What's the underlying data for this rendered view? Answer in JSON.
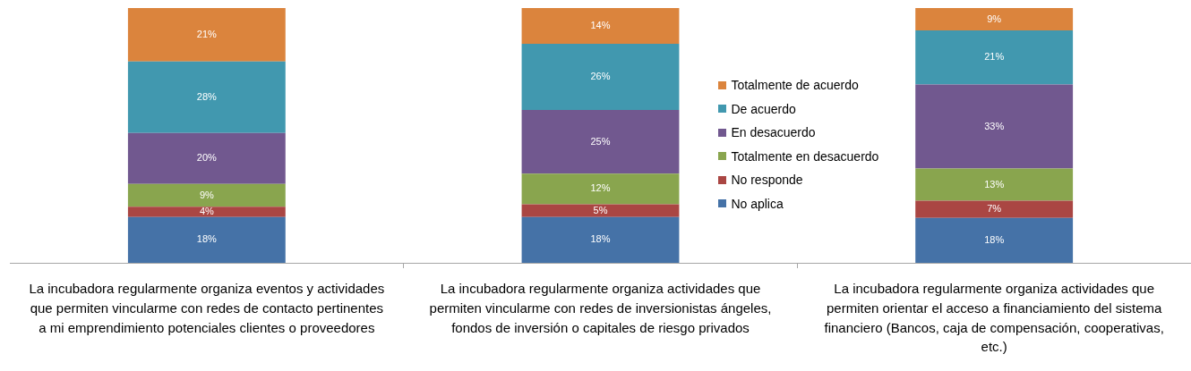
{
  "chart_data": {
    "type": "bar",
    "stacked": true,
    "legend": "right",
    "categories": [
      "La incubadora regularmente organiza eventos y actividades que permiten vincularme con redes de contacto pertinentes a mi emprendimiento potenciales clientes o proveedores",
      "La incubadora regularmente organiza actividades que permiten vincularme con redes de inversionistas ángeles, fondos de inversión o capitales de riesgo privados",
      "La incubadora regularmente organiza actividades que permiten orientar el acceso a financiamiento del sistema financiero (Bancos, caja de compensación, cooperativas, etc.)"
    ],
    "series": [
      {
        "name": "No aplica",
        "color": "#4572a7",
        "values": [
          18,
          18,
          17.6
        ],
        "value_labels": [
          "18%",
          "18%",
          "18%"
        ]
      },
      {
        "name": "No responde",
        "color": "#aa4643",
        "values": [
          4,
          5,
          6.8
        ],
        "value_labels": [
          "4%",
          "5%",
          "7%"
        ]
      },
      {
        "name": "Totalmente en desacuerdo",
        "color": "#89a54e",
        "values": [
          9,
          12,
          12.6
        ],
        "value_labels": [
          "9%",
          "12%",
          "13%"
        ]
      },
      {
        "name": "En desacuerdo",
        "color": "#71588f",
        "values": [
          20,
          25,
          33
        ],
        "value_labels": [
          "20%",
          "25%",
          "33%"
        ]
      },
      {
        "name": "De acuerdo",
        "color": "#4198af",
        "values": [
          28,
          26,
          21.2
        ],
        "value_labels": [
          "28%",
          "26%",
          "21%"
        ]
      },
      {
        "name": "Totalmente de acuerdo",
        "color": "#db843d",
        "values": [
          21,
          14,
          8.8
        ],
        "value_labels": [
          "21%",
          "14%",
          "9%"
        ]
      }
    ]
  }
}
